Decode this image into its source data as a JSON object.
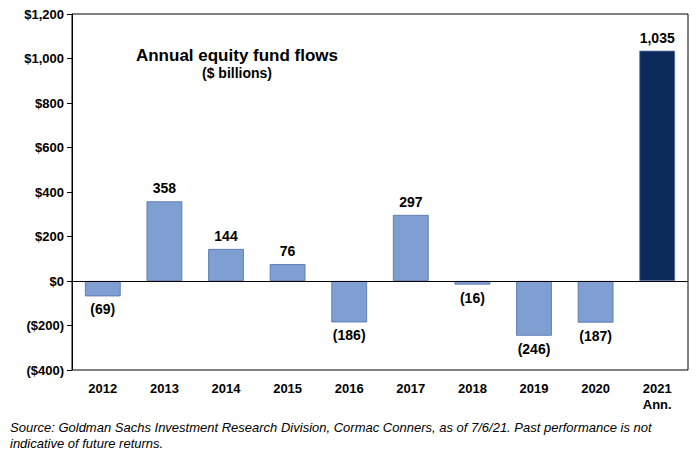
{
  "chart_data": {
    "type": "bar",
    "title": "Annual equity fund flows",
    "subtitle": "($ billions)",
    "categories": [
      "2012",
      "2013",
      "2014",
      "2015",
      "2016",
      "2017",
      "2018",
      "2019",
      "2020",
      "2021\nAnn."
    ],
    "values": [
      -69,
      358,
      144,
      76,
      -186,
      297,
      -16,
      -246,
      -187,
      1035
    ],
    "value_labels": [
      "(69)",
      "358",
      "144",
      "76",
      "(186)",
      "297",
      "(16)",
      "(246)",
      "(187)",
      "1,035"
    ],
    "colors": [
      "#7f9fd3",
      "#7f9fd3",
      "#7f9fd3",
      "#7f9fd3",
      "#7f9fd3",
      "#7f9fd3",
      "#7f9fd3",
      "#7f9fd3",
      "#7f9fd3",
      "#0d2b5a"
    ],
    "ylim": [
      -400,
      1200
    ],
    "yticks": [
      {
        "value": -400,
        "label": "($400)"
      },
      {
        "value": -200,
        "label": "($200)"
      },
      {
        "value": 0,
        "label": "$0"
      },
      {
        "value": 200,
        "label": "$200"
      },
      {
        "value": 400,
        "label": "$400"
      },
      {
        "value": 600,
        "label": "$600"
      },
      {
        "value": 800,
        "label": "$800"
      },
      {
        "value": 1000,
        "label": "$1,000"
      },
      {
        "value": 1200,
        "label": "$1,200"
      }
    ],
    "grid": false,
    "data_labels": true,
    "annotations": [
      "Source: Goldman Sachs Investment Research Division, Cormac Conners, as of 7/6/21. Past performance is not indicative of future returns."
    ]
  }
}
